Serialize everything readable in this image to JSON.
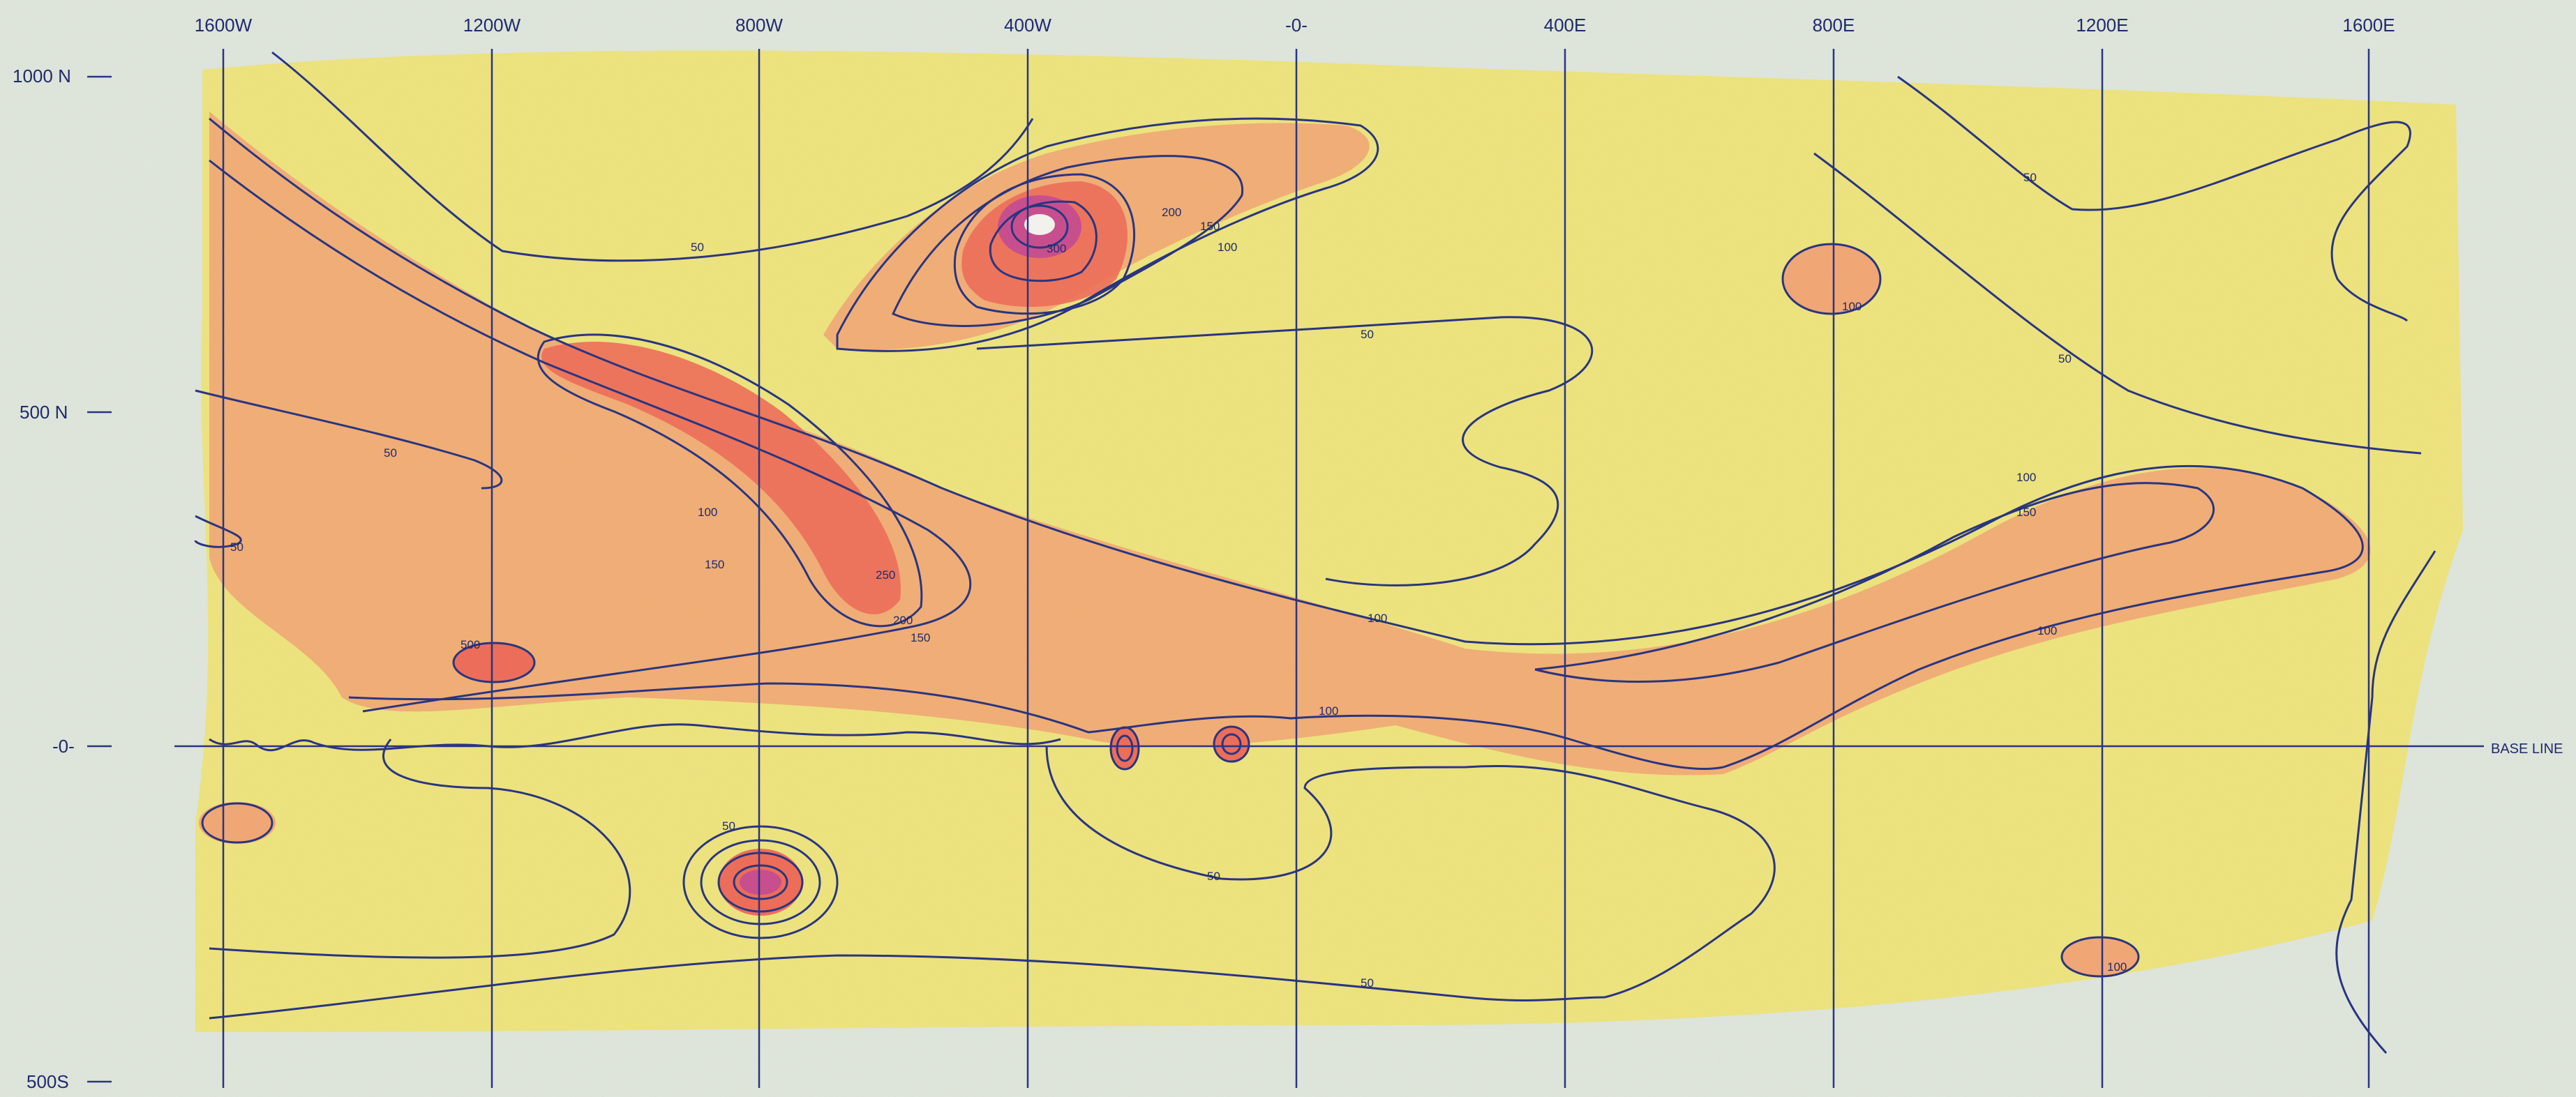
{
  "map": {
    "top_labels": [
      "1600W",
      "1200W",
      "800W",
      "400W",
      "-0-",
      "400E",
      "800E",
      "1200E",
      "1600E"
    ],
    "left_labels": [
      "1000 N",
      "500 N",
      "-0-",
      "500S"
    ],
    "baseline_label": "BASE LINE",
    "contour_labels": [
      "50",
      "100",
      "150",
      "200",
      "250",
      "300",
      "500"
    ],
    "colors": {
      "paper": "#dfe6dc",
      "yellow": "#f1e36b",
      "orange": "#f2a673",
      "red": "#ee6a55",
      "magenta": "#c84a8c",
      "ink": "#2a3580"
    }
  }
}
